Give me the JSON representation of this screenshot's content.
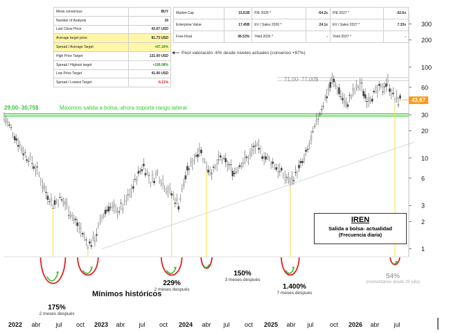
{
  "left_table": {
    "rows": [
      {
        "label": "Mean consensus",
        "value": "BUY",
        "highlight": false,
        "color": ""
      },
      {
        "label": "Number of Analysts",
        "value": "16",
        "highlight": false,
        "color": ""
      },
      {
        "label": "Last Close Price",
        "value": "43.67 USD",
        "highlight": false,
        "color": ""
      },
      {
        "label": "Average target price",
        "value": "81.73 USD",
        "highlight": true,
        "color": ""
      },
      {
        "label": "Spread / Average Target",
        "value": "+87.16%",
        "highlight": true,
        "color": "green"
      },
      {
        "label": "High Price Target",
        "value": "131.00 USD",
        "highlight": false,
        "color": ""
      },
      {
        "label": "Spread / Highest target",
        "value": "+199.98%",
        "highlight": false,
        "color": "green"
      },
      {
        "label": "Low Price Target",
        "value": "41.00 USD",
        "highlight": false,
        "color": ""
      },
      {
        "label": "Spread / Lowest Target",
        "value": "-6.11%",
        "highlight": false,
        "color": "red"
      }
    ]
  },
  "right_table": {
    "rows": [
      [
        "Market Cap",
        "15.61B",
        "P/E 2026 *",
        "-54.2x",
        "P/E 2027 *",
        "-52.6x"
      ],
      [
        "Enterprise Value",
        "17.45B",
        "EV / Sales 2026 *",
        "24.1x",
        "EV / Sales 2027 *",
        "7.33x"
      ],
      [
        "Free-Float",
        "96.53%",
        "Yield 2026 *",
        "-",
        "Yield 2027 *",
        "-"
      ]
    ]
  },
  "annotations": {
    "consensus_note": "Peor valoración -6% desde niveles actuales (consenso +87%)",
    "support_range": "29,00- 30,75$",
    "support_text": "Máximos salida a bolsa, ahora soporte rango lateral",
    "resistance_range": "71,00- 77,00$",
    "last_price": "43,67",
    "minimos": "Mínimos históricos"
  },
  "title_box": {
    "title": "IREN",
    "subtitle": "Salida a bolsa- actualidad",
    "freq": "(Frecuencia diaria)"
  },
  "rallies": [
    {
      "pct": "175%",
      "sub": "2 meses después",
      "dim": false
    },
    {
      "pct": "229%",
      "sub": "2 meses después",
      "dim": false
    },
    {
      "pct": "150%",
      "sub": "3 meses después",
      "dim": false
    },
    {
      "pct": "1.400%",
      "sub": "7 meses después",
      "dim": false
    },
    {
      "pct": "54%",
      "sub": "(momentáneo desde 29 julio)",
      "dim": true
    }
  ],
  "chart_data": {
    "type": "line",
    "title": "IREN",
    "y_scale": "log",
    "ylim": [
      0.82,
      400
    ],
    "y_ticks": [
      1,
      2,
      3,
      6,
      10,
      20,
      30,
      60,
      100,
      200,
      300
    ],
    "x_tick_labels": [
      "2022",
      "abr",
      "jul",
      "oct",
      "2023",
      "abr",
      "jul",
      "oct",
      "2024",
      "abr",
      "jul",
      "oct",
      "2025",
      "abr",
      "jul",
      "oct",
      "2026",
      "abr",
      "jul"
    ],
    "x": [
      "2021-11",
      "2021-12",
      "2022-01",
      "2022-02",
      "2022-03",
      "2022-04",
      "2022-05",
      "2022-06",
      "2022-07",
      "2022-08",
      "2022-09",
      "2022-10",
      "2022-11",
      "2022-12",
      "2023-01",
      "2023-02",
      "2023-03",
      "2023-04",
      "2023-05",
      "2023-06",
      "2023-07",
      "2023-08",
      "2023-09",
      "2023-10",
      "2023-11",
      "2023-12",
      "2024-01",
      "2024-02",
      "2024-03",
      "2024-04",
      "2024-05",
      "2024-06",
      "2024-07",
      "2024-08",
      "2024-09",
      "2024-10",
      "2024-11",
      "2024-12",
      "2025-01",
      "2025-02",
      "2025-03",
      "2025-04",
      "2025-05",
      "2025-06",
      "2025-07",
      "2025-08",
      "2025-09",
      "2025-10",
      "2025-11",
      "2025-12",
      "2026-01",
      "2026-02",
      "2026-03",
      "2026-04",
      "2026-05",
      "2026-06",
      "2026-07",
      "2026-08"
    ],
    "values": [
      28,
      21,
      15,
      11,
      9,
      6.5,
      4.2,
      3.1,
      3.6,
      3.0,
      2.1,
      1.6,
      1.1,
      1.3,
      2.2,
      3.0,
      2.6,
      2.9,
      4.0,
      6.2,
      8.5,
      5.5,
      6.8,
      5.0,
      4.0,
      3.1,
      6.3,
      9.2,
      13.0,
      8.0,
      7.0,
      10.0,
      8.5,
      7.0,
      9.0,
      10.0,
      13.5,
      11.0,
      9.5,
      8.0,
      6.5,
      5.4,
      7.2,
      9.5,
      16.0,
      28.0,
      45.0,
      72.0,
      55.0,
      38.0,
      52.0,
      65.0,
      45.0,
      50.0,
      58.0,
      68.0,
      44.0,
      43.67
    ],
    "series": [
      {
        "name": "IREN",
        "values": "see values"
      }
    ],
    "horizontal_levels": [
      {
        "label": "29,00- 30,75$",
        "from": 29.0,
        "to": 30.75
      },
      {
        "label": "71,00- 77,00$",
        "from": 71.0,
        "to": 77.0
      }
    ],
    "trendline": {
      "from": [
        "2023-01",
        1.0
      ],
      "to": [
        "2026-08",
        15.0
      ]
    },
    "last_value": 43.67,
    "grid": false,
    "legend": "none"
  }
}
